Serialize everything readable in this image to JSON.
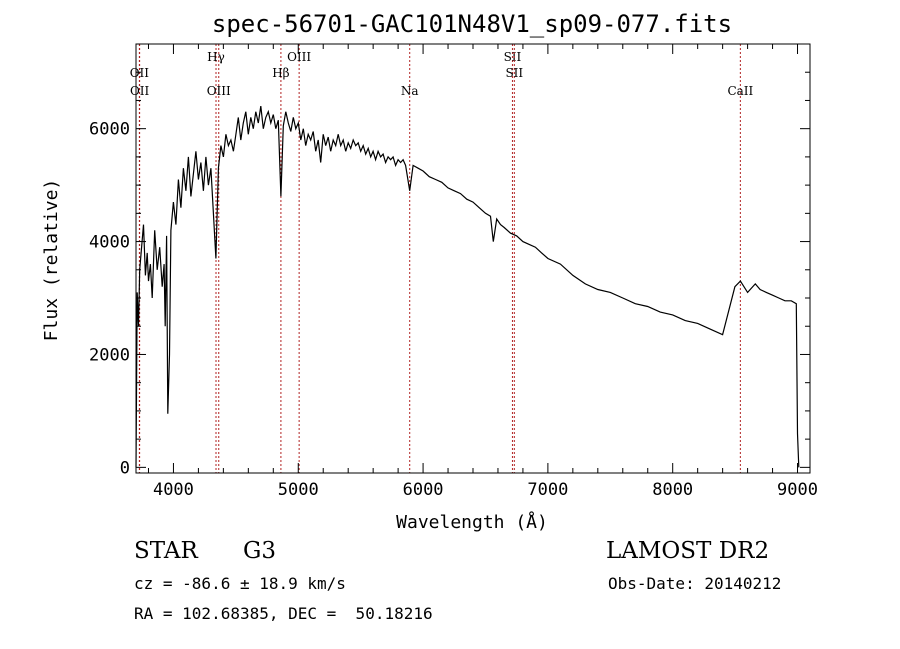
{
  "chart_data": {
    "type": "line",
    "title": "spec-56701-GAC101N48V1_sp09-077.fits",
    "xlabel": "Wavelength (Å)",
    "ylabel": "Flux (relative)",
    "xlim": [
      3700,
      9100
    ],
    "ylim": [
      -100,
      7500
    ],
    "xticks": [
      4000,
      5000,
      6000,
      7000,
      8000,
      9000
    ],
    "yticks": [
      0,
      2000,
      4000,
      6000
    ],
    "grid": false,
    "line_color": "#000000",
    "marker_color": "#b22222",
    "lines": [
      {
        "label": "OII",
        "x": 3727,
        "row": "a"
      },
      {
        "label": "OII",
        "x": 3729,
        "row": "b"
      },
      {
        "label": "Hγ",
        "x": 4341,
        "row": "top"
      },
      {
        "label": "OIII",
        "x": 4363,
        "row": "b"
      },
      {
        "label": "Hβ",
        "x": 4861,
        "row": "a"
      },
      {
        "label": "OIII",
        "x": 5007,
        "row": "top"
      },
      {
        "label": "Na",
        "x": 5893,
        "row": "b"
      },
      {
        "label": "SII",
        "x": 6716,
        "row": "top"
      },
      {
        "label": "SII",
        "x": 6731,
        "row": "a"
      },
      {
        "label": "CaII",
        "x": 8542,
        "row": "b"
      }
    ],
    "series": [
      {
        "x": [
          3700,
          3710,
          3720,
          3730,
          3745,
          3760,
          3775,
          3790,
          3800,
          3815,
          3830,
          3850,
          3870,
          3890,
          3910,
          3925,
          3934,
          3945,
          3955,
          3968,
          3980,
          4000,
          4020,
          4040,
          4060,
          4080,
          4100,
          4120,
          4140,
          4160,
          4180,
          4200,
          4220,
          4240,
          4260,
          4280,
          4300,
          4320,
          4340,
          4360,
          4380,
          4400,
          4420,
          4440,
          4460,
          4480,
          4500,
          4520,
          4540,
          4560,
          4580,
          4600,
          4620,
          4640,
          4660,
          4680,
          4700,
          4720,
          4740,
          4760,
          4780,
          4800,
          4820,
          4840,
          4861,
          4880,
          4900,
          4920,
          4940,
          4960,
          4980,
          5000,
          5020,
          5040,
          5060,
          5080,
          5100,
          5120,
          5140,
          5160,
          5180,
          5200,
          5220,
          5240,
          5260,
          5280,
          5300,
          5320,
          5340,
          5360,
          5380,
          5400,
          5420,
          5440,
          5460,
          5480,
          5500,
          5520,
          5540,
          5560,
          5580,
          5600,
          5620,
          5640,
          5660,
          5680,
          5700,
          5720,
          5740,
          5760,
          5780,
          5800,
          5820,
          5840,
          5860,
          5893,
          5920,
          5960,
          6000,
          6050,
          6100,
          6150,
          6200,
          6250,
          6300,
          6350,
          6400,
          6450,
          6500,
          6540,
          6563,
          6590,
          6620,
          6650,
          6700,
          6750,
          6800,
          6850,
          6900,
          6950,
          7000,
          7100,
          7200,
          7300,
          7400,
          7500,
          7600,
          7700,
          7800,
          7900,
          8000,
          8100,
          8200,
          8300,
          8400,
          8498,
          8542,
          8600,
          8662,
          8700,
          8750,
          8800,
          8850,
          8900,
          8950,
          8990,
          9000,
          9010
        ],
        "y": [
          0,
          3100,
          2500,
          3500,
          3900,
          4300,
          3400,
          3800,
          3300,
          3600,
          3000,
          4200,
          3500,
          3900,
          3200,
          3600,
          2500,
          4100,
          950,
          2000,
          4200,
          4700,
          4300,
          5100,
          4600,
          5300,
          4900,
          5500,
          4800,
          5200,
          5600,
          5100,
          5400,
          4900,
          5500,
          5000,
          5300,
          4500,
          3700,
          5300,
          5700,
          5500,
          5900,
          5700,
          5800,
          5600,
          5900,
          6200,
          5800,
          6100,
          6300,
          5900,
          6200,
          6000,
          6300,
          6100,
          6400,
          6000,
          6200,
          6300,
          6100,
          6250,
          6000,
          6150,
          4800,
          6050,
          6300,
          6100,
          5950,
          6200,
          6000,
          6100,
          5800,
          6000,
          5700,
          5900,
          5800,
          5950,
          5600,
          5800,
          5400,
          5900,
          5700,
          5850,
          5600,
          5800,
          5700,
          5900,
          5700,
          5800,
          5600,
          5750,
          5650,
          5800,
          5700,
          5750,
          5600,
          5700,
          5550,
          5650,
          5500,
          5600,
          5450,
          5600,
          5500,
          5550,
          5400,
          5500,
          5450,
          5500,
          5350,
          5450,
          5400,
          5450,
          5350,
          4900,
          5350,
          5300,
          5250,
          5150,
          5100,
          5050,
          4950,
          4900,
          4850,
          4750,
          4700,
          4600,
          4500,
          4450,
          4000,
          4400,
          4300,
          4250,
          4150,
          4100,
          4000,
          3950,
          3900,
          3800,
          3700,
          3600,
          3400,
          3250,
          3150,
          3100,
          3000,
          2900,
          2850,
          2750,
          2700,
          2600,
          2550,
          2450,
          2350,
          3200,
          3300,
          3100,
          3250,
          3150,
          3100,
          3050,
          3000,
          2950,
          2950,
          2900,
          600,
          0
        ]
      }
    ]
  },
  "footer": {
    "object_class": "STAR",
    "subclass": "G3",
    "survey": "LAMOST DR2",
    "redshift": "cz = -86.6 ± 18.9 km/s",
    "obs_date": "Obs-Date: 20140212",
    "coords": "RA = 102.68385, DEC =  50.18216"
  }
}
